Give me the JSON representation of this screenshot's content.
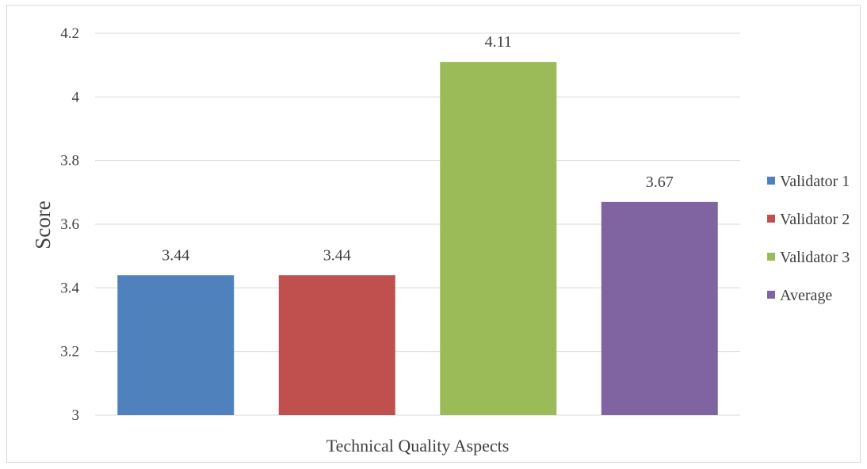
{
  "chart_data": {
    "type": "bar",
    "categories": [
      "Technical Quality Aspects"
    ],
    "series": [
      {
        "name": "Validator 1",
        "values": [
          3.44
        ],
        "color": "#4f81bd"
      },
      {
        "name": "Validator 2",
        "values": [
          3.44
        ],
        "color": "#c0504d"
      },
      {
        "name": "Validator 3",
        "values": [
          4.11
        ],
        "color": "#9bbb59"
      },
      {
        "name": "Average",
        "values": [
          3.67
        ],
        "color": "#8064a2"
      }
    ],
    "data_labels": [
      "3.44",
      "3.44",
      "4.11",
      "3.67"
    ],
    "yticks": [
      "3",
      "3.2",
      "3.4",
      "3.6",
      "3.8",
      "4",
      "4.2"
    ],
    "xlabel": "Technical Quality Aspects",
    "ylabel": "Score",
    "ylim": [
      3,
      4.2
    ],
    "grid": true,
    "legend_position": "right"
  }
}
